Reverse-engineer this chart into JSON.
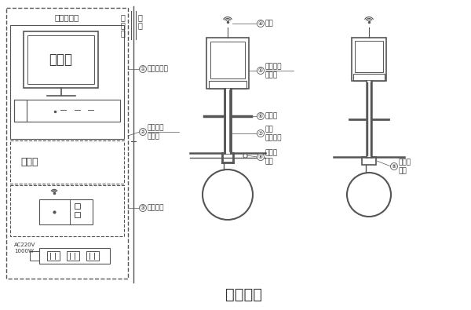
{
  "title": "无线结构",
  "title_fontsize": 14,
  "bg_color": "#ffffff",
  "line_color": "#555555",
  "text_color": "#333333",
  "cabinet_label": "控制室机柜",
  "monitor_label": "显示器",
  "lan_label": "局域网",
  "power_label": "AC220V\n1000W",
  "label1": "终端显示器",
  "label2a": "数据采集",
  "label2b": "服务器",
  "label3": "无线网关",
  "label4": "天线",
  "label5a": "在线壁厚",
  "label5b": "监测仪",
  "label6": "指热板",
  "label7a": "超声",
  "label7b": "波导探头",
  "label8a": "卡箍式",
  "label8b": "固定",
  "label9a": "焊接式",
  "label9b": "固定",
  "ctrl_room": "控\n制\n室",
  "field": "现\n场"
}
